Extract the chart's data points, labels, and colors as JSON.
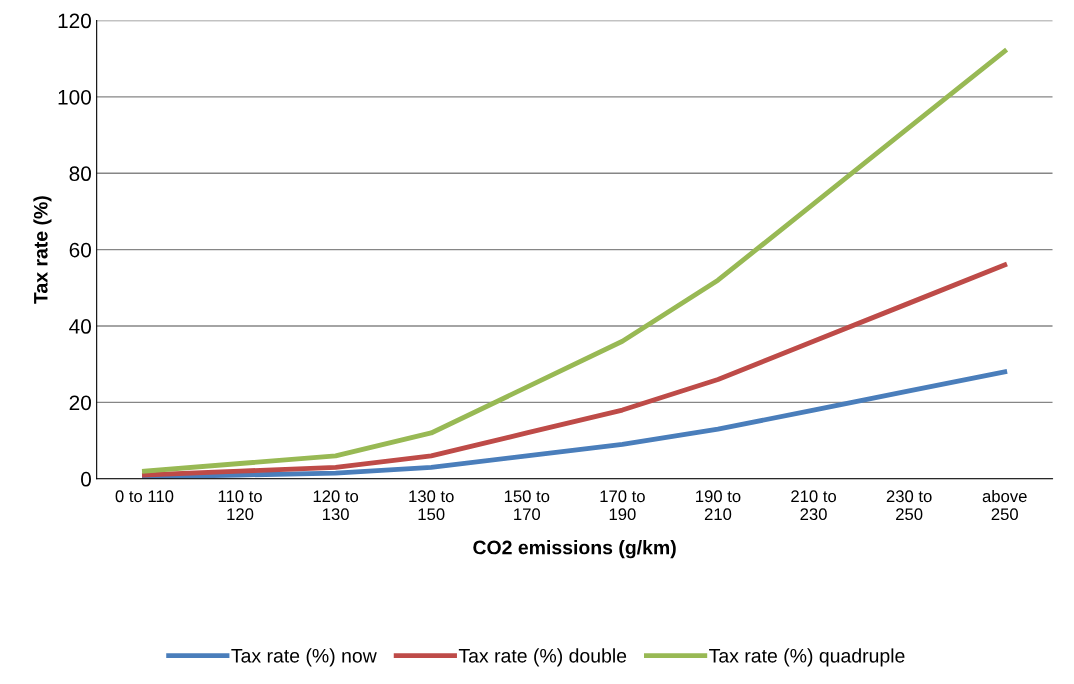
{
  "chart_data": {
    "type": "line",
    "xlabel": "CO2 emissions (g/km)",
    "ylabel": "Tax rate (%)",
    "categories": [
      "0 to 110",
      "110 to\n120",
      "120 to\n130",
      "130 to\n150",
      "150 to\n170",
      "170 to\n190",
      "190 to\n210",
      "210 to\n230",
      "230 to\n250",
      "above\n250"
    ],
    "series": [
      {
        "name": "Tax rate (%) now",
        "color": "#4a7ebb",
        "values": [
          0.5,
          1,
          1.5,
          3,
          6,
          9,
          13,
          18,
          23,
          28
        ]
      },
      {
        "name": "Tax rate (%) double",
        "color": "#be4b48",
        "values": [
          1,
          2,
          3,
          6,
          12,
          18,
          26,
          36,
          46,
          56
        ]
      },
      {
        "name": "Tax rate (%) quadruple",
        "color": "#98b954",
        "values": [
          2,
          4,
          6,
          12,
          24,
          36,
          52,
          72,
          92,
          112
        ]
      }
    ],
    "ylim": [
      0,
      120
    ],
    "yticks": [
      0,
      20,
      40,
      60,
      80,
      100,
      120
    ],
    "grid": "y",
    "legend": "bottom",
    "marker": "none",
    "line_style": "solid"
  }
}
